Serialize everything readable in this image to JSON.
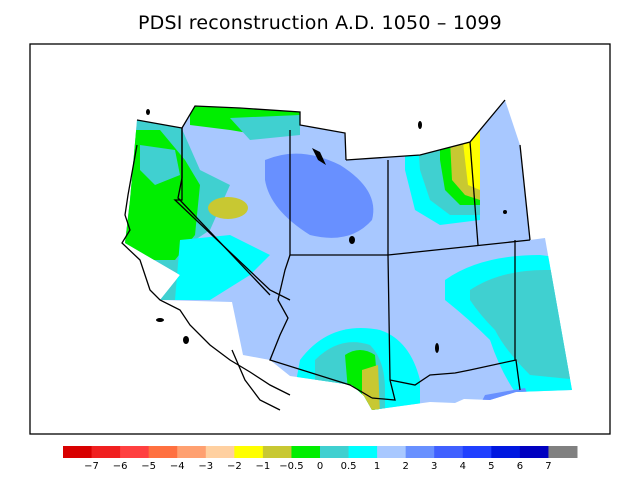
{
  "title": "PDSI reconstruction A.D. 1050 – 1099",
  "legend": {
    "bins": [
      {
        "color": "#d80000"
      },
      {
        "color": "#f02020"
      },
      {
        "color": "#ff4040"
      },
      {
        "color": "#ff7040"
      },
      {
        "color": "#ffa070"
      },
      {
        "color": "#ffd0a0"
      },
      {
        "color": "#ffff00"
      },
      {
        "color": "#c8c832"
      },
      {
        "color": "#00ee00"
      },
      {
        "color": "#40d0d0"
      },
      {
        "color": "#00ffff"
      },
      {
        "color": "#a8c8ff"
      },
      {
        "color": "#6890ff"
      },
      {
        "color": "#4060ff"
      },
      {
        "color": "#2040ff"
      },
      {
        "color": "#0018e0"
      },
      {
        "color": "#0000c0"
      },
      {
        "color": "#808080"
      }
    ],
    "labels": [
      "−7",
      "−6",
      "−5",
      "−4",
      "−3",
      "−2",
      "−1",
      "−0.5",
      "0",
      "0.5",
      "1",
      "2",
      "3",
      "4",
      "5",
      "6",
      "7"
    ]
  }
}
